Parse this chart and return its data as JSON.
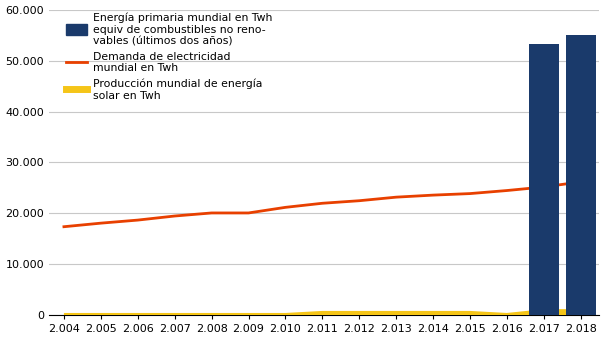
{
  "years": [
    2004,
    2005,
    2006,
    2007,
    2008,
    2009,
    2010,
    2011,
    2012,
    2013,
    2014,
    2015,
    2016,
    2017,
    2018
  ],
  "energy_primary": [
    null,
    null,
    null,
    null,
    null,
    null,
    null,
    null,
    null,
    null,
    null,
    null,
    null,
    53200,
    55000
  ],
  "electricity_demand": [
    17400,
    18100,
    18700,
    19500,
    20100,
    20100,
    21200,
    22000,
    22500,
    23200,
    23600,
    23900,
    24500,
    25200,
    26200
  ],
  "solar_production": [
    -200,
    -200,
    -200,
    -200,
    -200,
    -200,
    -200,
    200,
    200,
    200,
    200,
    200,
    -200,
    550,
    550
  ],
  "color_primary": "#1a3a6b",
  "color_electricity": "#e84000",
  "color_solar": "#f5c518",
  "ylim": [
    0,
    60000
  ],
  "yticks": [
    0,
    10000,
    20000,
    30000,
    40000,
    50000,
    60000
  ],
  "legend_label_primary": "Energía primaria mundial en Twh\nequiv de combustibles no reno-\nvables (últimos dos años)",
  "legend_label_electricity": "Demanda de electricidad\nmundial en Twh",
  "legend_label_solar": "Producción mundial de energía\nsolar en Twh",
  "background_color": "#ffffff",
  "grid_color": "#c8c8c8",
  "xlim_left": 2003.6,
  "xlim_right": 2018.5
}
